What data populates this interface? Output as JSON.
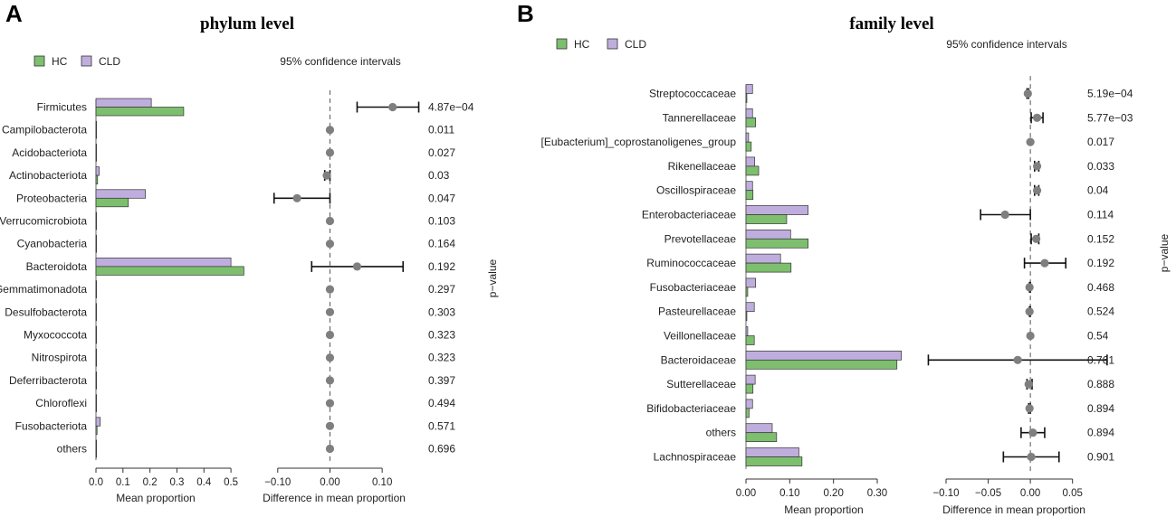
{
  "colors": {
    "hc": "#7dbf6e",
    "cld": "#bfaedd",
    "point": "#7f7f7f"
  },
  "figure": {
    "panel_a_label": "A",
    "panel_b_label": "B",
    "legend_hc": "HC",
    "legend_cld": "CLD",
    "ci_label": "95% confidence intervals",
    "pvalue_label": "p−value",
    "mean_axis_label": "Mean proportion",
    "diff_axis_label": "Difference in mean proportion"
  },
  "chart_data": [
    {
      "type": "bar",
      "title": "phylum level",
      "xlabel": "Mean proportion",
      "xlim": [
        0,
        0.55
      ],
      "xticks": [
        "0.0",
        "0.1",
        "0.2",
        "0.3",
        "0.4",
        "0.5"
      ],
      "categories": [
        "Firmicutes",
        "Campilobacterota",
        "Acidobacteriota",
        "Actinobacteriota",
        "Proteobacteria",
        "Verrucomicrobiota",
        "Cyanobacteria",
        "Bacteroidota",
        "Gemmatimonadota",
        "Desulfobacterota",
        "Myxococcota",
        "Nitrospirota",
        "Deferribacterota",
        "Chloroflexi",
        "Fusobacteriota",
        "others"
      ],
      "series": [
        {
          "name": "CLD",
          "values": [
            0.205,
            0.001,
            0.001,
            0.012,
            0.183,
            0.001,
            0.001,
            0.5,
            0.001,
            0.002,
            0.001,
            0.001,
            0.001,
            0.001,
            0.016,
            0.001
          ]
        },
        {
          "name": "HC",
          "values": [
            0.325,
            0.001,
            0.001,
            0.006,
            0.12,
            0.001,
            0.001,
            0.548,
            0.001,
            0.002,
            0.001,
            0.001,
            0.001,
            0.001,
            0.004,
            0.001
          ]
        }
      ],
      "difference": {
        "xlabel": "Difference in mean proportion",
        "xlim": [
          -0.11,
          0.15
        ],
        "xticks": [
          "−0.10",
          "0.00",
          "0.10"
        ],
        "estimate": [
          0.12,
          0,
          0,
          -0.006,
          -0.063,
          0,
          0,
          0.052,
          0,
          0,
          0,
          0,
          0,
          0,
          0,
          0
        ],
        "lower": [
          0.052,
          0,
          0,
          -0.01,
          -0.107,
          0,
          0,
          -0.035,
          0,
          0,
          0,
          0,
          0,
          0,
          0,
          0
        ],
        "upper": [
          0.17,
          0,
          0,
          0,
          0,
          0,
          0,
          0.14,
          0,
          0,
          0,
          0,
          0,
          0,
          0,
          0
        ]
      },
      "p_values": [
        "4.87e−04",
        "0.011",
        "0.027",
        "0.03",
        "0.047",
        "0.103",
        "0.164",
        "0.192",
        "0.297",
        "0.303",
        "0.323",
        "0.323",
        "0.397",
        "0.494",
        "0.571",
        "0.696"
      ]
    },
    {
      "type": "bar",
      "title": "family level",
      "xlabel": "Mean proportion",
      "xlim": [
        0,
        0.36
      ],
      "xticks": [
        "0.00",
        "0.10",
        "0.20",
        "0.30"
      ],
      "categories": [
        "Streptococcaceae",
        "Tannerellaceae",
        "[Eubacterium]_coprostanoligenes_group",
        "Rikenellaceae",
        "Oscillospiraceae",
        "Enterobacteriaceae",
        "Prevotellaceae",
        "Ruminococcaceae",
        "Fusobacteriaceae",
        "Pasteurellaceae",
        "Veillonellaceae",
        "Bacteroidaceae",
        "Sutterellaceae",
        "Bifidobacteriaceae",
        "others",
        "Lachnospiraceae"
      ],
      "series": [
        {
          "name": "CLD",
          "values": [
            0.015,
            0.015,
            0.006,
            0.02,
            0.015,
            0.142,
            0.102,
            0.079,
            0.022,
            0.019,
            0.004,
            0.355,
            0.021,
            0.015,
            0.06,
            0.121
          ]
        },
        {
          "name": "HC",
          "values": [
            0.002,
            0.022,
            0.012,
            0.029,
            0.016,
            0.093,
            0.142,
            0.103,
            0.004,
            0.002,
            0.019,
            0.345,
            0.016,
            0.007,
            0.07,
            0.128
          ]
        }
      ],
      "difference": {
        "xlabel": "Difference in mean proportion",
        "xlim": [
          -0.1,
          0.06
        ],
        "xticks": [
          "−0.10",
          "−0.05",
          "0.00",
          "0.05"
        ],
        "estimate": [
          -0.003,
          0.008,
          0,
          0.008,
          0.008,
          -0.03,
          0.007,
          0.017,
          -0.001,
          -0.001,
          0,
          -0.015,
          -0.002,
          -0.001,
          0.003,
          0.001
        ],
        "lower": [
          -0.004,
          0.001,
          0,
          0.005,
          0.005,
          -0.059,
          0.001,
          -0.007,
          -0.001,
          -0.001,
          0,
          -0.121,
          -0.004,
          -0.002,
          -0.011,
          -0.032
        ],
        "upper": [
          -0.002,
          0.015,
          0,
          0.01,
          0.01,
          0,
          0.01,
          0.042,
          0,
          0,
          0,
          0.091,
          0.002,
          0,
          0.017,
          0.034
        ]
      },
      "p_values": [
        "5.19e−04",
        "5.77e−03",
        "0.017",
        "0.033",
        "0.04",
        "0.114",
        "0.152",
        "0.192",
        "0.468",
        "0.524",
        "0.54",
        "0.761",
        "0.888",
        "0.894",
        "0.894",
        "0.901"
      ]
    }
  ]
}
